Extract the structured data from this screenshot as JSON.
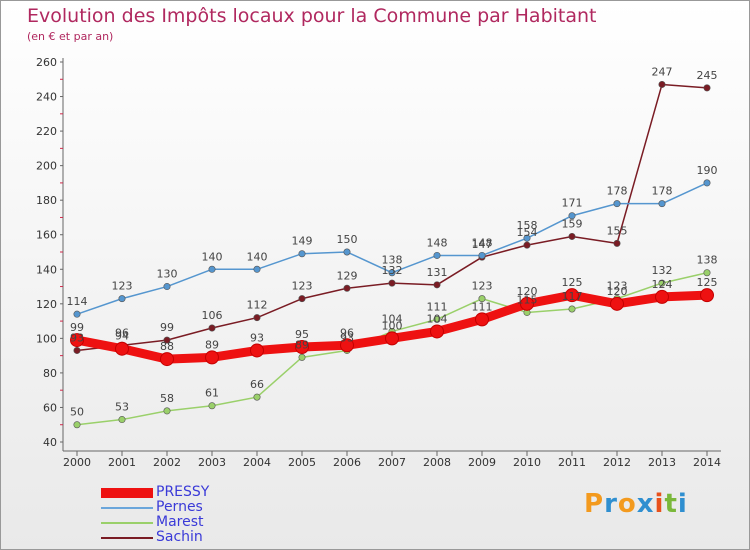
{
  "chart_data": {
    "type": "line",
    "title": "Evolution des Impôts locaux pour la Commune par Habitant",
    "subtitle": "(en € et par an)",
    "xlabel": "",
    "ylabel": "",
    "ylim": [
      40,
      260
    ],
    "yticks": [
      40,
      60,
      80,
      100,
      120,
      140,
      160,
      180,
      200,
      220,
      240,
      260
    ],
    "categories": [
      "2000",
      "2001",
      "2002",
      "2003",
      "2004",
      "2005",
      "2006",
      "2007",
      "2008",
      "2009",
      "2010",
      "2011",
      "2012",
      "2013",
      "2014"
    ],
    "grid": false,
    "legend_position": "bottom-left",
    "series": [
      {
        "name": "Sachin",
        "color": "#7a1c24",
        "values": [
          93,
          96,
          99,
          106,
          112,
          123,
          129,
          132,
          131,
          147,
          154,
          159,
          155,
          247,
          245
        ],
        "labels": [
          "93",
          "96",
          "99",
          "106",
          "112",
          "123",
          "129",
          "132",
          "131",
          "147",
          "154",
          "159",
          "155",
          "247",
          "245"
        ]
      },
      {
        "name": "Marest",
        "color": "#9ad06a",
        "values": [
          50,
          53,
          58,
          61,
          66,
          89,
          93,
          104,
          111,
          123,
          115,
          117,
          123,
          132,
          138
        ],
        "labels": [
          "50",
          "53",
          "58",
          "61",
          "66",
          "89",
          "93",
          "104",
          "111",
          "123",
          "115",
          "117",
          "123",
          "132",
          "138"
        ]
      },
      {
        "name": "Pernes",
        "color": "#5596cf",
        "values": [
          114,
          123,
          130,
          140,
          140,
          149,
          150,
          138,
          148,
          148,
          158,
          171,
          178,
          178,
          190
        ],
        "labels": [
          "114",
          "123",
          "130",
          "140",
          "140",
          "149",
          "150",
          "138",
          "148",
          "148",
          "158",
          "171",
          "178",
          "178",
          "190"
        ]
      },
      {
        "name": "PRESSY",
        "color": "#ee1111",
        "values": [
          99,
          94,
          88,
          89,
          93,
          95,
          96,
          100,
          104,
          111,
          120,
          125,
          120,
          124,
          125
        ],
        "labels": [
          "99",
          "94",
          "88",
          "89",
          "93",
          "95",
          "96",
          "100",
          "104",
          "111",
          "120",
          "125",
          "120",
          "124",
          "125"
        ]
      }
    ]
  },
  "legend": [
    {
      "name": "PRESSY",
      "color": "#ee1111",
      "text_color": "#3a3ad8"
    },
    {
      "name": "Pernes",
      "color": "#6ba6db",
      "text_color": "#3a3ad8"
    },
    {
      "name": "Marest",
      "color": "#9ad06a",
      "text_color": "#3a3ad8"
    },
    {
      "name": "Sachin",
      "color": "#7a1c24",
      "text_color": "#3a3ad8"
    }
  ],
  "logo": {
    "letters": [
      "P",
      "r",
      "o",
      "x",
      "i",
      "t",
      "i"
    ],
    "colors": [
      "#f39a1e",
      "#2f8fd0",
      "#f39a1e",
      "#2f8fd0",
      "#e8511c",
      "#7ab83a",
      "#2f8fd0"
    ]
  }
}
